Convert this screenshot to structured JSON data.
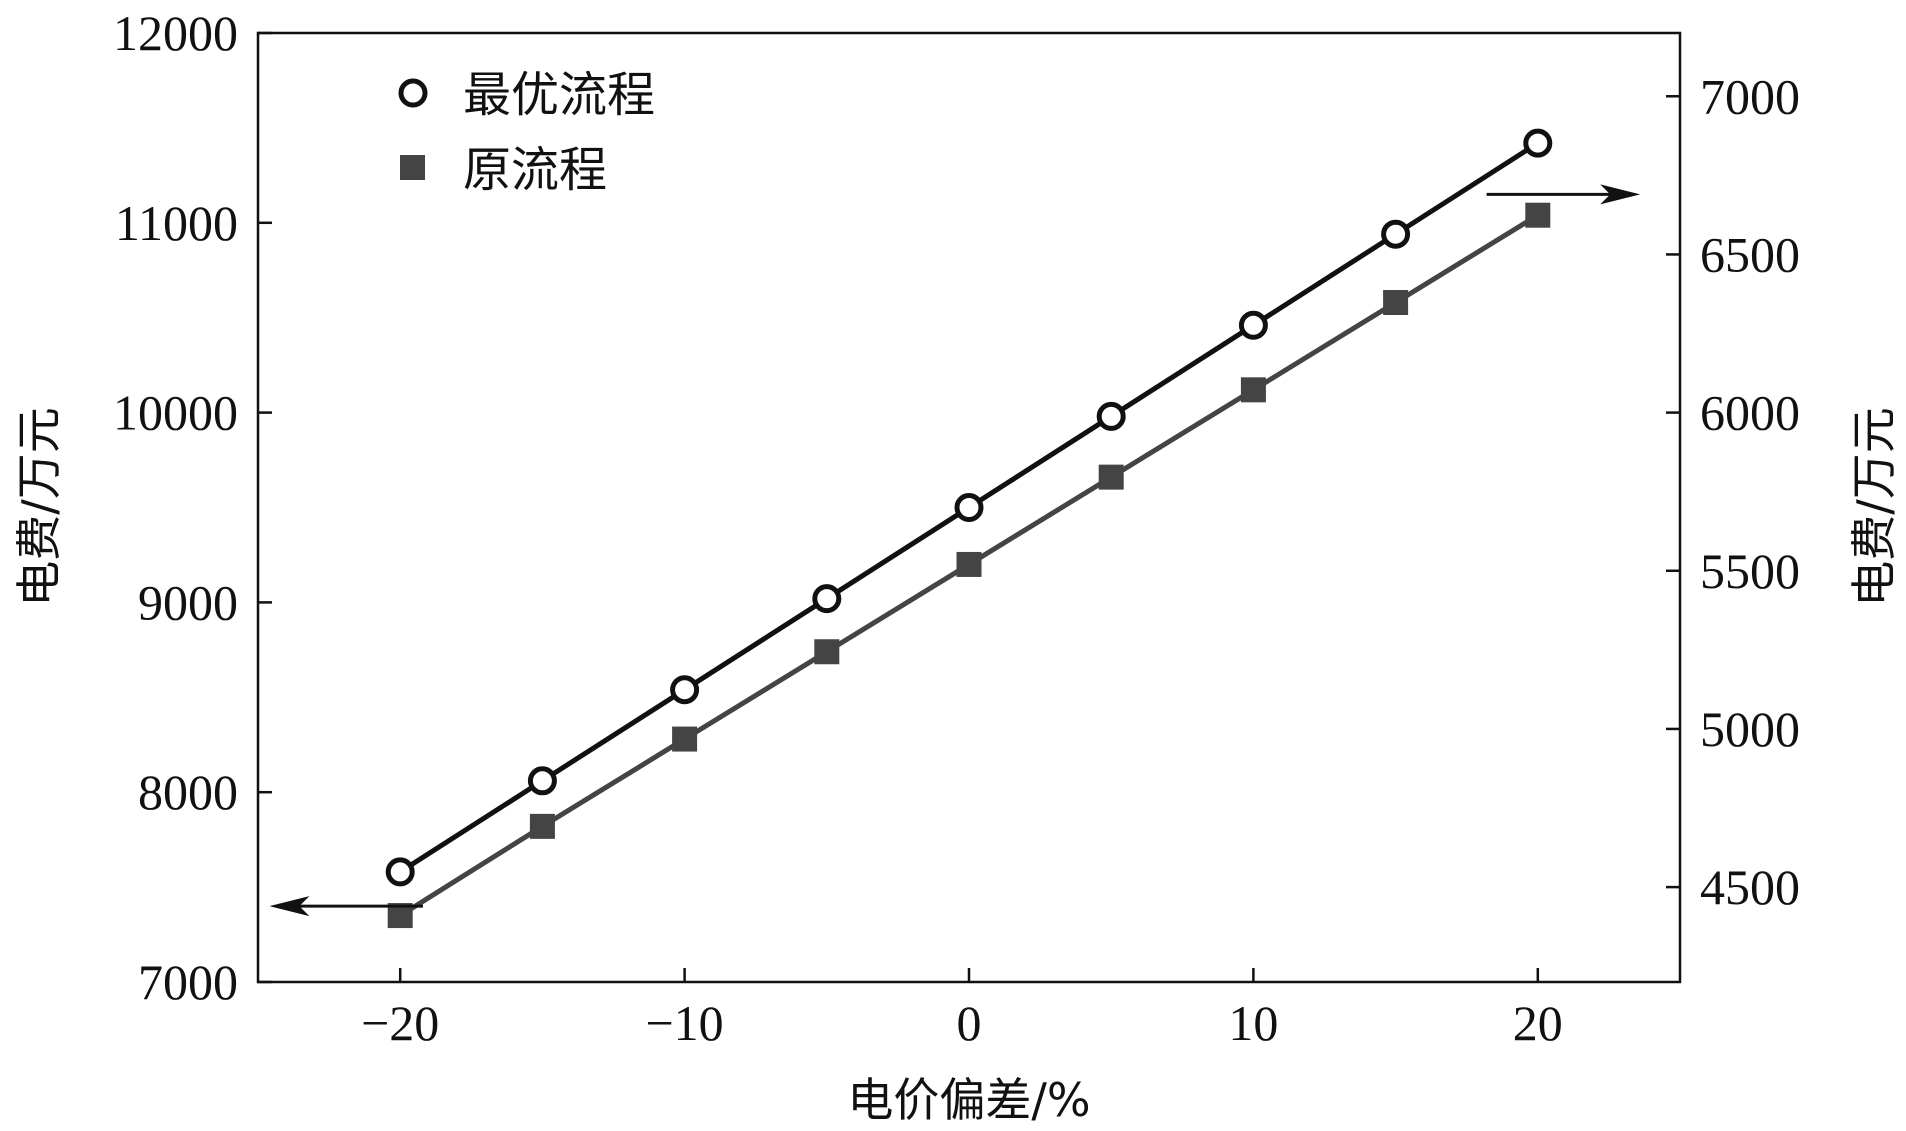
{
  "chart_data": {
    "type": "line",
    "xlabel": "电价偏差/%",
    "ylabel_left": "电费/万元",
    "ylabel_right": "电费/万元",
    "xlim": [
      -25,
      25
    ],
    "ylim_left": [
      7000,
      12000
    ],
    "ylim_right": [
      4200,
      7200
    ],
    "x_ticks": [
      -20,
      -10,
      0,
      10,
      20
    ],
    "x_tick_labels": [
      "−20",
      "−10",
      "0",
      "10",
      "20"
    ],
    "y_left_ticks": [
      7000,
      8000,
      9000,
      10000,
      11000,
      12000
    ],
    "y_left_tick_labels": [
      "7000",
      "8000",
      "9000",
      "10000",
      "11000",
      "12000"
    ],
    "y_right_ticks": [
      4500,
      5000,
      5500,
      6000,
      6500,
      7000
    ],
    "y_right_tick_labels": [
      "4500",
      "5000",
      "5500",
      "6000",
      "6500",
      "7000"
    ],
    "legend_position": "top-left",
    "grid": false,
    "x": [
      -20,
      -15,
      -10,
      -5,
      0,
      5,
      10,
      15,
      20
    ],
    "series": [
      {
        "name": "最优流程",
        "axis": "left",
        "marker": "open-circle",
        "color": "#111111",
        "values": [
          7580,
          8060,
          8540,
          9020,
          9500,
          9980,
          10460,
          10940,
          11420
        ]
      },
      {
        "name": "原流程",
        "axis": "left",
        "marker": "filled-square",
        "color": "#444444",
        "values": [
          7350,
          7820,
          8280,
          8740,
          9200,
          9660,
          10120,
          10580,
          11040
        ]
      }
    ],
    "annotations": [
      {
        "type": "arrow",
        "direction": "left",
        "meaning": "series read on left axis"
      },
      {
        "type": "arrow",
        "direction": "right",
        "meaning": "series read on right axis"
      }
    ]
  }
}
